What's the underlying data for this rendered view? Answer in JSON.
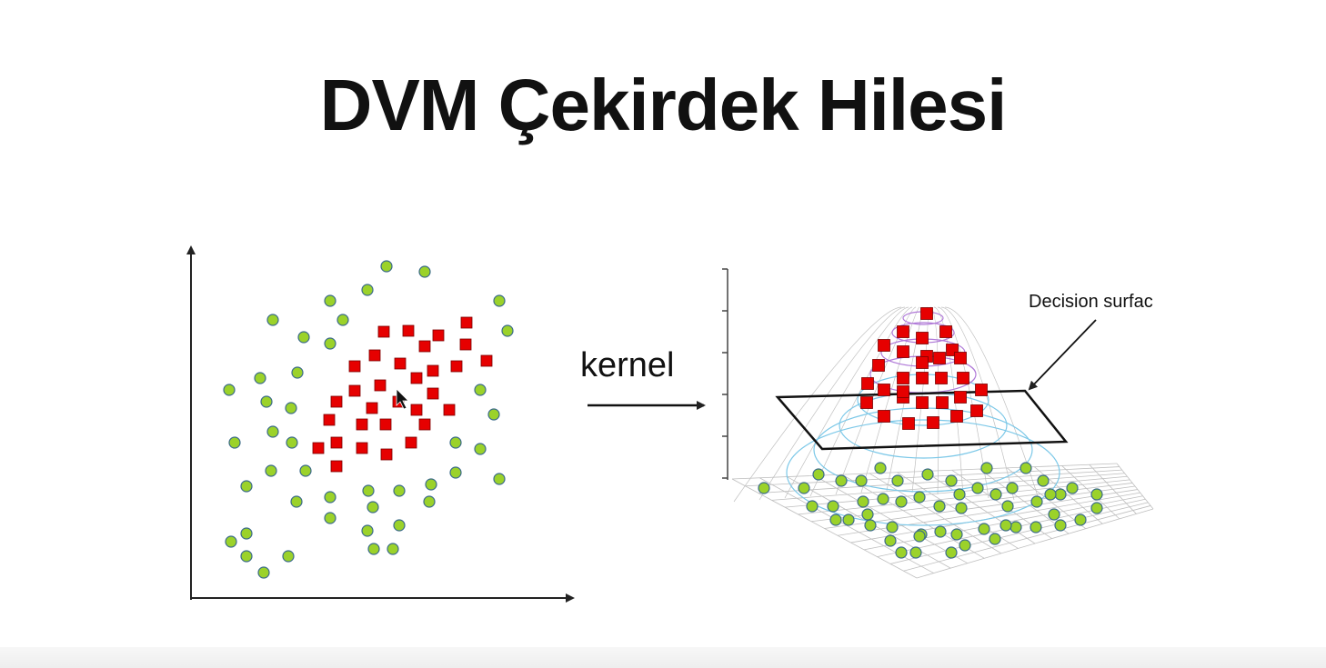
{
  "slide": {
    "title": "DVM Çekirdek Hilesi"
  },
  "diagram": {
    "kernel_label": "kernel",
    "decision_label": "Decision surfac",
    "colors": {
      "green_point": "#9bd22a",
      "green_stroke": "#3a6a8a",
      "red_point": "#e60000",
      "red_stroke": "#7a0000",
      "axis": "#222222",
      "mesh": "#bfbfbf",
      "contour_blue": "#7cc8e8",
      "contour_purple": "#b07ad8"
    }
  }
}
